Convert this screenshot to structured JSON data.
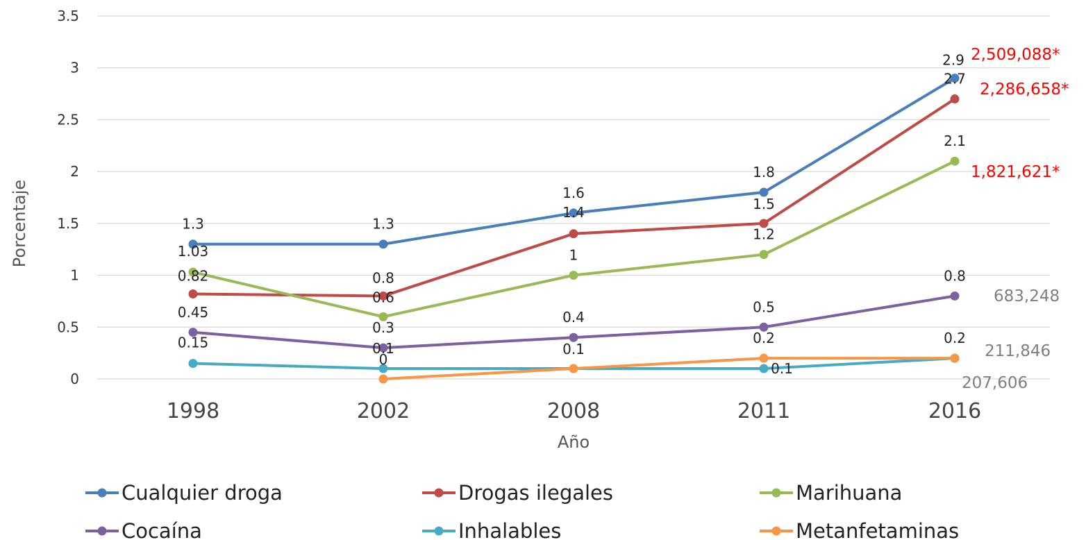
{
  "chart_data": {
    "type": "line",
    "xlabel": "Año",
    "ylabel": "Porcentaje",
    "categories": [
      "1998",
      "2002",
      "2008",
      "2011",
      "2016"
    ],
    "ylim": [
      0,
      3.5
    ],
    "yticks": [
      "0",
      "0.5",
      "1",
      "1.5",
      "2",
      "2.5",
      "3",
      "3.5"
    ],
    "grid": true,
    "legend_position": "bottom",
    "series": [
      {
        "name": "Cualquier droga",
        "color": "#4a7ebb",
        "values": [
          1.3,
          1.3,
          1.6,
          1.8,
          2.9
        ],
        "labels": [
          "1.3",
          "1.3",
          "1.6",
          "1.8",
          "2.9"
        ]
      },
      {
        "name": "Drogas ilegales",
        "color": "#be4b48",
        "values": [
          0.82,
          0.8,
          1.4,
          1.5,
          2.7
        ],
        "labels": [
          "0.82",
          "0.8",
          "1.4",
          "1.5",
          "2.7"
        ]
      },
      {
        "name": "Marihuana",
        "color": "#98b954",
        "values": [
          1.03,
          0.6,
          1.0,
          1.2,
          2.1
        ],
        "labels": [
          "1.03",
          "0.6",
          "1",
          "1.2",
          "2.1"
        ]
      },
      {
        "name": "Cocaína",
        "color": "#7d60a0",
        "values": [
          0.45,
          0.3,
          0.4,
          0.5,
          0.8
        ],
        "labels": [
          "0.45",
          "0.3",
          "0.4",
          "0.5",
          "0.8"
        ]
      },
      {
        "name": "Inhalables",
        "color": "#46aac5",
        "values": [
          0.15,
          0.1,
          0.1,
          0.1,
          0.2
        ],
        "labels": [
          "0.15",
          "0.1",
          "",
          "0.1",
          ""
        ]
      },
      {
        "name": "Metanfetaminas",
        "color": "#f79646",
        "values": [
          null,
          0,
          0.1,
          0.2,
          0.2
        ],
        "labels": [
          "",
          "0",
          "0.1",
          "0.2",
          "0.2"
        ]
      }
    ],
    "annotations": [
      {
        "text": "2,509,088*",
        "color": "#ff0000",
        "series": "Cualquier droga"
      },
      {
        "text": "2,286,658*",
        "color": "#ff0000",
        "series": "Drogas ilegales"
      },
      {
        "text": "1,821,621*",
        "color": "#ff0000",
        "series": "Marihuana"
      },
      {
        "text": "683,248",
        "color": "#7f7f7f",
        "series": "Cocaína"
      },
      {
        "text": "211,846",
        "color": "#7f7f7f",
        "series": "Metanfetaminas"
      },
      {
        "text": "207,606",
        "color": "#7f7f7f",
        "series": "Inhalables"
      }
    ]
  }
}
